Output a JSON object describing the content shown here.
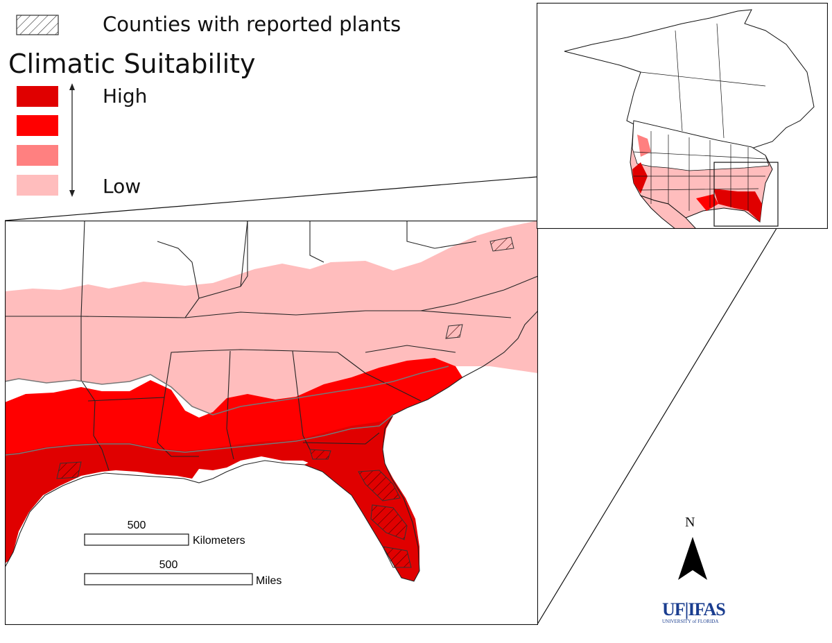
{
  "legend": {
    "hatch_label": "Counties with reported plants",
    "title": "Climatic Suitability",
    "high_label": "High",
    "low_label": "Low",
    "classes": [
      {
        "level": "very-high",
        "color": "#e00000"
      },
      {
        "level": "high",
        "color": "#ff0000"
      },
      {
        "level": "medium",
        "color": "#ff8080"
      },
      {
        "level": "low",
        "color": "#ffbdbd"
      }
    ]
  },
  "scale_bars": {
    "km_value": "500",
    "km_unit": "Kilometers",
    "mi_value": "500",
    "mi_unit": "Miles"
  },
  "north_arrow": {
    "label": "N"
  },
  "logo": {
    "text": "UF|IFAS",
    "subtext": "UNIVERSITY of FLORIDA",
    "color": "#1a3d8f",
    "accent": "#f47a20"
  }
}
